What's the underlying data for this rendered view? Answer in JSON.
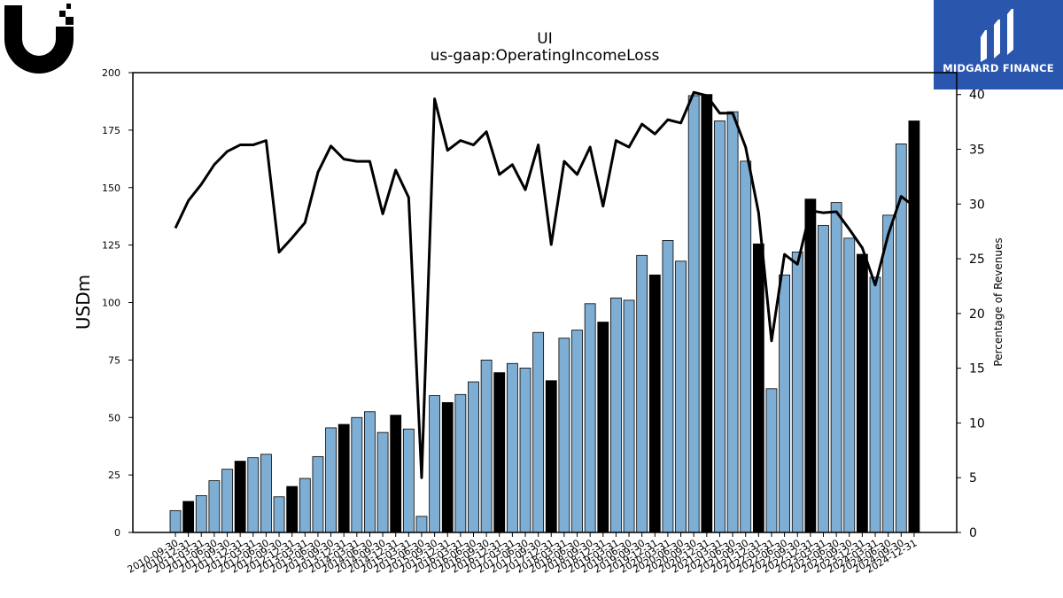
{
  "brand": {
    "name": "MIDGARD FINANCE"
  },
  "colors": {
    "bar_light": "#7eaed3",
    "bar_dark": "#000000",
    "line": "#000000"
  },
  "chart_data": {
    "type": "bar",
    "title": "UI",
    "subtitle": "us-gaap:OperatingIncomeLoss",
    "ylabel": "USDm",
    "y2label": "Percentage of Revenues",
    "ylim": [
      0,
      200
    ],
    "y2lim": [
      0,
      42
    ],
    "yticks": [
      0,
      25,
      50,
      75,
      100,
      125,
      150,
      175,
      200
    ],
    "y2ticks": [
      0,
      5,
      10,
      15,
      20,
      25,
      30,
      35,
      40
    ],
    "grid": false,
    "categories": [
      "2010-09-30",
      "2010-12-31",
      "2011-03-31",
      "2011-06-30",
      "2011-09-30",
      "2011-12-31",
      "2012-03-31",
      "2012-06-30",
      "2012-09-30",
      "2012-12-31",
      "2013-03-31",
      "2013-06-30",
      "2013-09-30",
      "2013-12-31",
      "2014-03-31",
      "2014-06-30",
      "2014-09-30",
      "2014-12-31",
      "2015-03-31",
      "2015-06-30",
      "2015-09-30",
      "2015-12-31",
      "2016-03-31",
      "2016-06-30",
      "2016-09-30",
      "2016-12-31",
      "2017-03-31",
      "2017-06-30",
      "2017-09-30",
      "2017-12-31",
      "2018-03-31",
      "2018-06-30",
      "2018-09-30",
      "2018-12-31",
      "2019-03-31",
      "2019-06-30",
      "2019-09-30",
      "2019-12-31",
      "2020-03-31",
      "2020-06-30",
      "2020-09-30",
      "2020-12-31",
      "2021-03-31",
      "2021-06-30",
      "2021-09-30",
      "2021-12-31",
      "2022-03-31",
      "2022-06-30",
      "2022-09-30",
      "2022-12-31",
      "2023-03-31",
      "2023-06-30",
      "2023-09-30",
      "2023-12-31",
      "2024-03-31",
      "2024-06-30",
      "2024-09-30",
      "2024-12-31"
    ],
    "series": [
      {
        "type": "bar",
        "highlight_every": 4,
        "highlight_offset": 1,
        "values": [
          9.5,
          13.5,
          16,
          22.5,
          27.5,
          31,
          32.5,
          34,
          15.5,
          20,
          23.5,
          33,
          45.5,
          47,
          50,
          52.5,
          43.5,
          51,
          45,
          7,
          59.5,
          56.5,
          60,
          65.5,
          75,
          69.5,
          73.5,
          71.5,
          87,
          66,
          84.5,
          88,
          99.5,
          91.5,
          102,
          101,
          120.5,
          112,
          127,
          118,
          190,
          190.5,
          179,
          183,
          161.5,
          125.5,
          62.5,
          112,
          122,
          145,
          133.5,
          143.5,
          128,
          121,
          111,
          138,
          169,
          179
        ]
      },
      {
        "type": "line",
        "axis": "right",
        "values": [
          27.8,
          30.3,
          31.8,
          33.6,
          34.8,
          35.4,
          35.4,
          35.8,
          25.6,
          26.9,
          28.3,
          32.9,
          35.3,
          34.1,
          33.9,
          33.9,
          29.1,
          33.1,
          30.6,
          5,
          39.6,
          34.9,
          35.8,
          35.4,
          36.6,
          32.7,
          33.6,
          31.3,
          35.4,
          26.3,
          33.9,
          32.7,
          35.2,
          29.8,
          35.8,
          35.2,
          37.3,
          36.4,
          37.7,
          37.4,
          40.2,
          39.9,
          38.3,
          38.3,
          35.2,
          29.2,
          17.5,
          25.4,
          24.5,
          29.4,
          29.2,
          29.3,
          27.7,
          26,
          22.6,
          27.2,
          30.7,
          29.8
        ]
      }
    ]
  }
}
